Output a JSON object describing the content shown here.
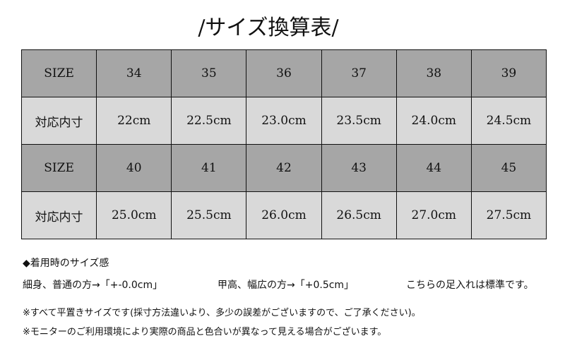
{
  "title": "/サイズ換算表/",
  "table": [
    {
      "type": "h",
      "cells": [
        "SIZE",
        "34",
        "35",
        "36",
        "37",
        "38",
        "39"
      ]
    },
    {
      "type": "v",
      "cells": [
        "対応内寸",
        "22cm",
        "22.5cm",
        "23.0cm",
        "23.5cm",
        "24.0cm",
        "24.5cm"
      ]
    },
    {
      "type": "h",
      "cells": [
        "SIZE",
        "40",
        "41",
        "42",
        "43",
        "44",
        "45"
      ]
    },
    {
      "type": "v",
      "cells": [
        "対応内寸",
        "25.0cm",
        "25.5cm",
        "26.0cm",
        "26.5cm",
        "27.0cm",
        "27.5cm"
      ]
    }
  ],
  "fit": {
    "heading": "◆着用時のサイズ感",
    "slim": "細身、普通の方→「+-0.0cm」",
    "wide": "甲高、幅広の方→「+0.5cm」",
    "standard": "こちらの足入れは標準です。"
  },
  "notes": [
    "※すべて平置きサイズです(採寸方法違いより、多少の誤差がございますので、ご了承ください)。",
    "※モニターのご利用環境により実際の商品と色合いが異なって見える場合がございます。"
  ],
  "colors": {
    "header": "#a6a6a6",
    "value": "#d9d9d9"
  }
}
